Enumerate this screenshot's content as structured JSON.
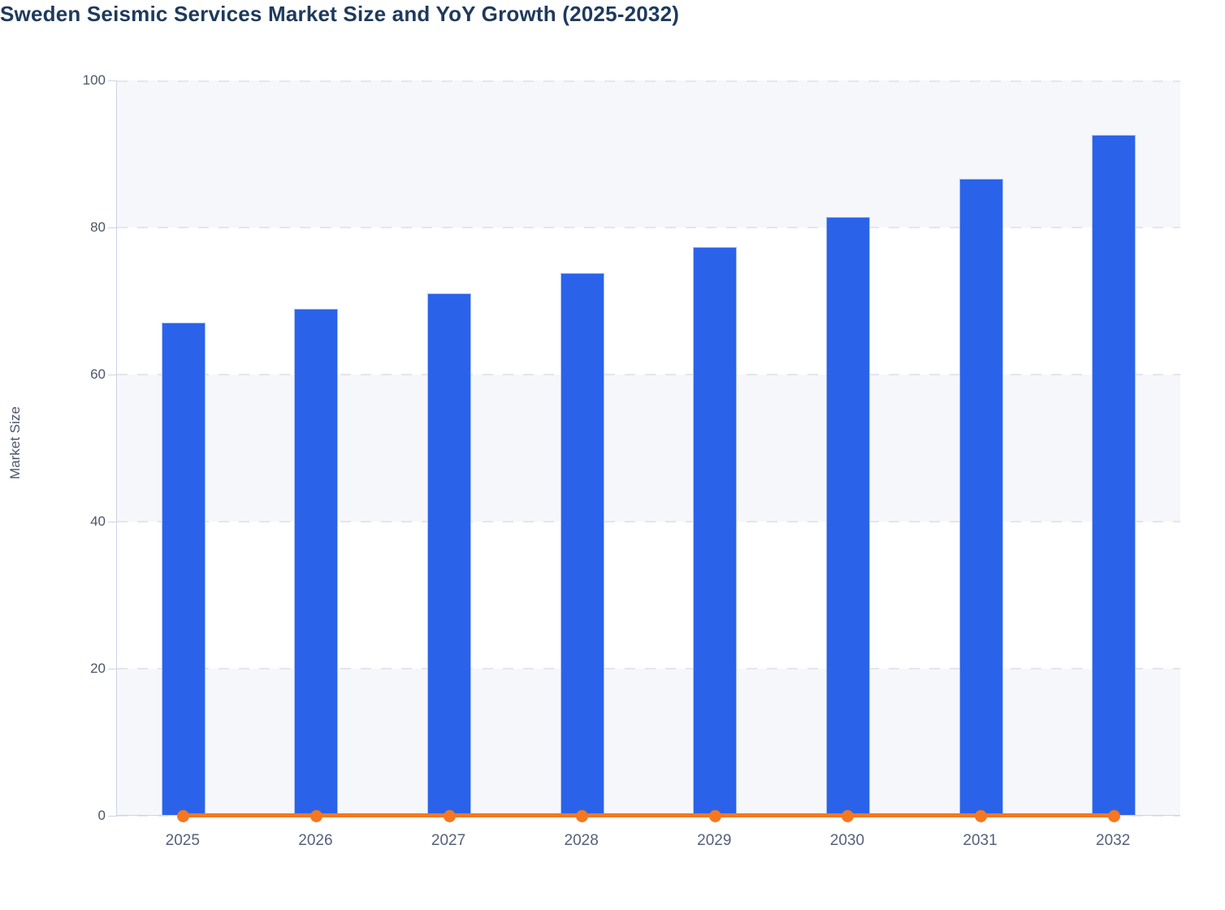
{
  "chart": {
    "title": "Sweden Seismic Services Market Size and YoY Growth (2025-2032)"
  },
  "chart_data": {
    "type": "bar",
    "title": "Sweden Seismic Services Market Size and YoY Growth (2025-2032)",
    "categories": [
      "2025",
      "2026",
      "2027",
      "2028",
      "2029",
      "2030",
      "2031",
      "2032"
    ],
    "series": [
      {
        "name": "Market Size",
        "type": "bar",
        "color": "#2a63ea",
        "values": [
          67.1,
          68.9,
          71.1,
          73.8,
          77.3,
          81.4,
          86.6,
          92.6
        ]
      },
      {
        "name": "YoY Growth",
        "type": "line",
        "color": "#f5771f",
        "flat_at_zero": true,
        "values": [
          0,
          0,
          0,
          0,
          0,
          0,
          0,
          0
        ]
      }
    ],
    "xlabel": "",
    "ylabel": "Market Size",
    "ylim": [
      0,
      100
    ],
    "yticks": [
      0,
      20,
      40,
      60,
      80,
      100
    ],
    "shaded_bands": [
      [
        80,
        100
      ],
      [
        40,
        60
      ],
      [
        0,
        20
      ]
    ],
    "grid": "dashed-horizontal",
    "legend": "none"
  },
  "colors": {
    "title_text": "#1e3a5c",
    "axis_label_text": "#4c5669",
    "x_label_text": "#55607a",
    "axis_line": "#ccd4e8",
    "gridline": "#e4e6ea",
    "band_fill": "#f5f7fa",
    "bar_fill": "#2a63ea",
    "line_stroke": "#f5771f",
    "background": "#ffffff"
  }
}
